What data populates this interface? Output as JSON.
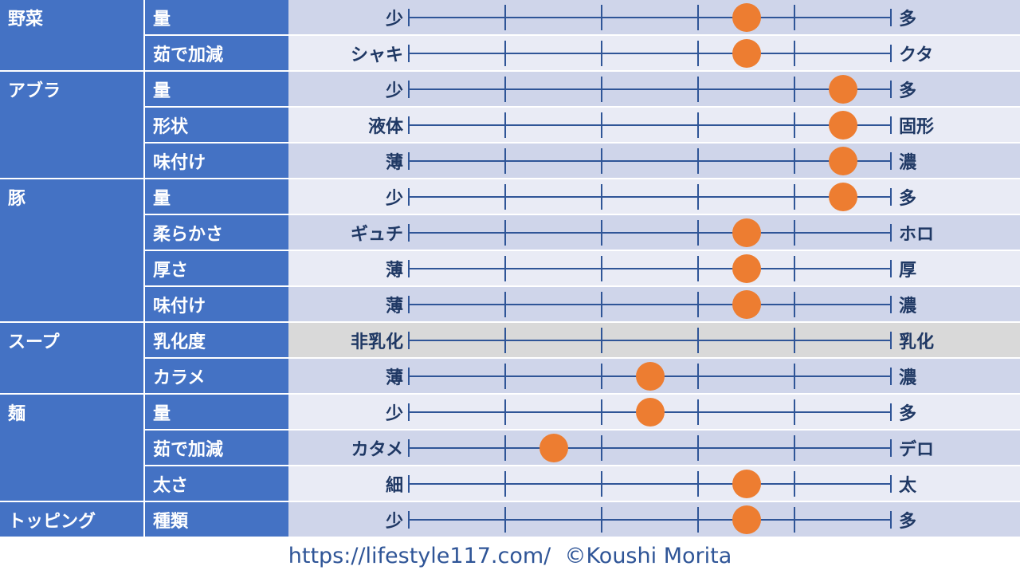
{
  "colors": {
    "header_bg": "#4472C4",
    "row_bg_dark": "#CFD5EA",
    "row_bg_light": "#E9EBF5",
    "row_bg_na": "#D9D9D9",
    "line": "#2F5597",
    "dot": "#ED7D31",
    "label_text": "#1F3864",
    "footer_text": "#2F5597"
  },
  "scale": {
    "min": 0,
    "max": 10,
    "tick_values": [
      0,
      1,
      2,
      3,
      4,
      5,
      6,
      7,
      8,
      9,
      10
    ]
  },
  "categories": [
    {
      "name": "野菜",
      "rows": [
        {
          "attribute": "量",
          "left": "少",
          "right": "多",
          "value": 7
        },
        {
          "attribute": "茹で加減",
          "left": "シャキ",
          "right": "クタ",
          "value": 7
        }
      ]
    },
    {
      "name": "アブラ",
      "rows": [
        {
          "attribute": "量",
          "left": "少",
          "right": "多",
          "value": 9
        },
        {
          "attribute": "形状",
          "left": "液体",
          "right": "固形",
          "value": 9
        },
        {
          "attribute": "味付け",
          "left": "薄",
          "right": "濃",
          "value": 9
        }
      ]
    },
    {
      "name": "豚",
      "rows": [
        {
          "attribute": "量",
          "left": "少",
          "right": "多",
          "value": 9
        },
        {
          "attribute": "柔らかさ",
          "left": "ギュチ",
          "right": "ホロ",
          "value": 7
        },
        {
          "attribute": "厚さ",
          "left": "薄",
          "right": "厚",
          "value": 7
        },
        {
          "attribute": "味付け",
          "left": "薄",
          "right": "濃",
          "value": 7
        }
      ]
    },
    {
      "name": "スープ",
      "rows": [
        {
          "attribute": "乳化度",
          "left": "非乳化",
          "right": "乳化",
          "value": null
        },
        {
          "attribute": "カラメ",
          "left": "薄",
          "right": "濃",
          "value": 5
        }
      ]
    },
    {
      "name": "麺",
      "rows": [
        {
          "attribute": "量",
          "left": "少",
          "right": "多",
          "value": 5
        },
        {
          "attribute": "茹で加減",
          "left": "カタメ",
          "right": "デロ",
          "value": 3
        },
        {
          "attribute": "太さ",
          "left": "細",
          "right": "太",
          "value": 7
        }
      ]
    },
    {
      "name": "トッピング",
      "rows": [
        {
          "attribute": "種類",
          "left": "少",
          "right": "多",
          "value": 7
        }
      ]
    }
  ],
  "footer": {
    "text": "https://lifestyle117.com/  ©Koushi Morita"
  }
}
